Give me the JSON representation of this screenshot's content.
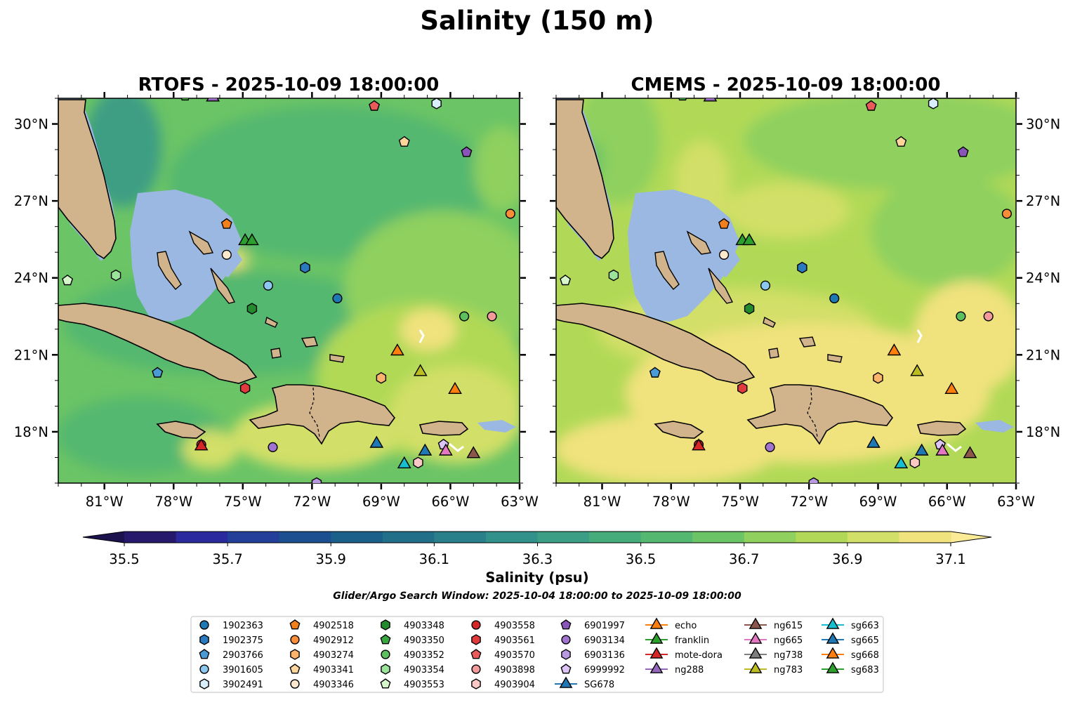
{
  "figure_title": "Salinity (150 m)",
  "window_text": "Glider/Argo Search Window: 2025-10-04 18:00:00 to 2025-10-09 18:00:00",
  "colors": {
    "land": "#d2b48c",
    "shallow": "#9ab8e2",
    "coast": "#000000"
  },
  "chart_data": [
    {
      "type": "heatmap",
      "title": "RTOFS - 2025-10-09 18:00:00",
      "lon_range": [
        -83,
        -63
      ],
      "lat_range": [
        16,
        31
      ],
      "x_ticks": [
        "81°W",
        "78°W",
        "75°W",
        "72°W",
        "69°W",
        "66°W",
        "63°W"
      ],
      "x_tick_values": [
        -81,
        -78,
        -75,
        -72,
        -69,
        -66,
        -63
      ],
      "y_ticks": [
        "30°N",
        "27°N",
        "24°N",
        "21°N",
        "18°N"
      ],
      "y_tick_values": [
        30,
        27,
        24,
        21,
        18
      ],
      "field_summary": "36.3–36.7 psu over most of the domain, rising to 36.9–37.1 psu in the southeast"
    },
    {
      "type": "heatmap",
      "title": "CMEMS - 2025-10-09 18:00:00",
      "lon_range": [
        -83,
        -63
      ],
      "lat_range": [
        16,
        31
      ],
      "x_ticks": [
        "81°W",
        "78°W",
        "75°W",
        "72°W",
        "69°W",
        "66°W",
        "63°W"
      ],
      "x_tick_values": [
        -81,
        -78,
        -75,
        -72,
        -69,
        -66,
        -63
      ],
      "y_ticks": [
        "30°N",
        "27°N",
        "24°N",
        "21°N",
        "18°N"
      ],
      "y_tick_values": [
        30,
        27,
        24,
        21,
        18
      ],
      "field_summary": "36.6–37.0 psu over most of the domain, 37.0–37.1 psu across the south"
    },
    {
      "type": "colorbar",
      "label": "Salinity (psu)",
      "vmin": 35.5,
      "vmax": 37.1,
      "step": 0.1,
      "extend": "both",
      "tick_values": [
        35.5,
        35.7,
        35.9,
        36.1,
        36.3,
        36.5,
        36.7,
        36.9,
        37.1
      ],
      "tick_labels": [
        "35.5",
        "35.7",
        "35.9",
        "36.1",
        "36.3",
        "36.5",
        "36.7",
        "36.9",
        "37.1"
      ],
      "level_colors": [
        "#26186b",
        "#2a2a9e",
        "#233f9a",
        "#1b4f8f",
        "#1b5f8b",
        "#226f8a",
        "#29808a",
        "#32918a",
        "#3c9e84",
        "#47ac7b",
        "#55b870",
        "#6bc465",
        "#8fd05e",
        "#b1d957",
        "#d2df68",
        "#f0e27d"
      ],
      "under_color": "#1c124d",
      "over_color": "#fbeb96"
    }
  ],
  "legend": {
    "columns": [
      [
        {
          "label": "1902363",
          "marker": "circle",
          "color": "#1f77b4"
        },
        {
          "label": "1902375",
          "marker": "hexagon",
          "color": "#2b7ac0"
        },
        {
          "label": "2903766",
          "marker": "pentagon",
          "color": "#4a9ad5"
        },
        {
          "label": "3901605",
          "marker": "circle",
          "color": "#8cc7f0"
        },
        {
          "label": "3902491",
          "marker": "hexagon",
          "color": "#d8eefc"
        }
      ],
      [
        {
          "label": "4902518",
          "marker": "pentagon",
          "color": "#f07f1c"
        },
        {
          "label": "4902912",
          "marker": "circle",
          "color": "#fa8e38"
        },
        {
          "label": "4903274",
          "marker": "hexagon",
          "color": "#fdb36b"
        },
        {
          "label": "4903341",
          "marker": "pentagon",
          "color": "#fed59a"
        },
        {
          "label": "4903346",
          "marker": "circle",
          "color": "#fee9cf"
        }
      ],
      [
        {
          "label": "4903348",
          "marker": "hexagon",
          "color": "#238b2d"
        },
        {
          "label": "4903350",
          "marker": "pentagon",
          "color": "#3aa63f"
        },
        {
          "label": "4903352",
          "marker": "circle",
          "color": "#5ebf5e"
        },
        {
          "label": "4903354",
          "marker": "hexagon",
          "color": "#9be39a"
        },
        {
          "label": "4903553",
          "marker": "pentagon",
          "color": "#d6f7cc"
        }
      ],
      [
        {
          "label": "4903558",
          "marker": "circle",
          "color": "#d62728"
        },
        {
          "label": "4903561",
          "marker": "hexagon",
          "color": "#e03a3c"
        },
        {
          "label": "4903570",
          "marker": "pentagon",
          "color": "#eb5a5a"
        },
        {
          "label": "4903898",
          "marker": "circle",
          "color": "#f39a9a"
        },
        {
          "label": "4903904",
          "marker": "hexagon",
          "color": "#fbc9c5"
        }
      ],
      [
        {
          "label": "6901997",
          "marker": "pentagon",
          "color": "#8a55b8"
        },
        {
          "label": "6903134",
          "marker": "circle",
          "color": "#a074cf"
        },
        {
          "label": "6903136",
          "marker": "hexagon",
          "color": "#b99ae0"
        },
        {
          "label": "6999992",
          "marker": "pentagon",
          "color": "#dcc4f6"
        },
        {
          "label": "SG678",
          "marker": "triangle",
          "color": "#1f77b4",
          "line": true
        }
      ],
      [
        {
          "label": "echo",
          "marker": "triangle",
          "color": "#ff7f0e",
          "line": true
        },
        {
          "label": "franklin",
          "marker": "triangle",
          "color": "#2ca02c",
          "line": true
        },
        {
          "label": "mote-dora",
          "marker": "triangle",
          "color": "#d62728",
          "line": true
        },
        {
          "label": "ng288",
          "marker": "triangle",
          "color": "#9467bd",
          "line": true
        }
      ],
      [
        {
          "label": "ng615",
          "marker": "triangle",
          "color": "#8c564b",
          "line": true
        },
        {
          "label": "ng665",
          "marker": "triangle",
          "color": "#e377c2",
          "line": true
        },
        {
          "label": "ng738",
          "marker": "triangle",
          "color": "#7f7f7f",
          "line": true
        },
        {
          "label": "ng783",
          "marker": "triangle",
          "color": "#bcbd22",
          "line": true
        }
      ],
      [
        {
          "label": "sg663",
          "marker": "triangle",
          "color": "#17becf",
          "line": true
        },
        {
          "label": "sg665",
          "marker": "triangle",
          "color": "#1f77b4",
          "line": true
        },
        {
          "label": "sg668",
          "marker": "triangle",
          "color": "#ff7f0e",
          "line": true
        },
        {
          "label": "sg683",
          "marker": "triangle",
          "color": "#2ca02c",
          "line": true
        }
      ]
    ]
  },
  "observations": [
    {
      "id": "1902363",
      "lon": -70.9,
      "lat": 23.2
    },
    {
      "id": "1902375",
      "lon": -72.3,
      "lat": 24.4
    },
    {
      "id": "2903766",
      "lon": -78.7,
      "lat": 20.3
    },
    {
      "id": "3901605",
      "lon": -73.9,
      "lat": 23.7
    },
    {
      "id": "3902491",
      "lon": -66.6,
      "lat": 30.8
    },
    {
      "id": "4902518",
      "lon": -75.7,
      "lat": 26.1
    },
    {
      "id": "4902912",
      "lon": -63.4,
      "lat": 26.5
    },
    {
      "id": "4903274",
      "lon": -69.0,
      "lat": 20.1
    },
    {
      "id": "4903341",
      "lon": -68.0,
      "lat": 29.3
    },
    {
      "id": "4903346",
      "lon": -75.7,
      "lat": 24.9
    },
    {
      "id": "4903348",
      "lon": -74.6,
      "lat": 22.8
    },
    {
      "id": "4903350",
      "lon": -77.5,
      "lat": 31.1
    },
    {
      "id": "4903352",
      "lon": -65.4,
      "lat": 22.5
    },
    {
      "id": "4903354",
      "lon": -80.5,
      "lat": 24.1
    },
    {
      "id": "4903553",
      "lon": -82.6,
      "lat": 23.9
    },
    {
      "id": "4903558",
      "lon": -76.8,
      "lat": 17.5
    },
    {
      "id": "4903561",
      "lon": -74.9,
      "lat": 19.7
    },
    {
      "id": "4903570",
      "lon": -69.3,
      "lat": 30.7
    },
    {
      "id": "4903898",
      "lon": -64.2,
      "lat": 22.5
    },
    {
      "id": "4903904",
      "lon": -67.4,
      "lat": 16.8
    },
    {
      "id": "6901997",
      "lon": -65.3,
      "lat": 28.9
    },
    {
      "id": "6903134",
      "lon": -73.7,
      "lat": 17.4
    },
    {
      "id": "6903136",
      "lon": -71.8,
      "lat": 16.0
    },
    {
      "id": "6999992",
      "lon": -66.3,
      "lat": 17.5
    },
    {
      "id": "SG678",
      "lon": -69.2,
      "lat": 17.6
    },
    {
      "id": "echo",
      "lon": -68.3,
      "lat": 21.2
    },
    {
      "id": "franklin",
      "lon": -74.9,
      "lat": 25.5
    },
    {
      "id": "mote-dora",
      "lon": -76.8,
      "lat": 17.5
    },
    {
      "id": "ng288",
      "lon": -76.3,
      "lat": 31.1
    },
    {
      "id": "ng615",
      "lon": -65.0,
      "lat": 17.2
    },
    {
      "id": "ng665",
      "lon": -66.2,
      "lat": 17.3
    },
    {
      "id": "ng738",
      "lon": -68.0,
      "lat": 16.8
    },
    {
      "id": "ng783",
      "lon": -67.3,
      "lat": 20.4
    },
    {
      "id": "sg663",
      "lon": -68.0,
      "lat": 16.8
    },
    {
      "id": "sg665",
      "lon": -67.1,
      "lat": 17.3
    },
    {
      "id": "sg668",
      "lon": -65.8,
      "lat": 19.7
    },
    {
      "id": "sg683",
      "lon": -74.6,
      "lat": 25.5
    }
  ]
}
